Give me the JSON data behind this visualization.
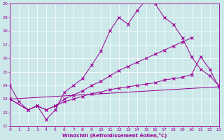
{
  "background_color": "#cce8e8",
  "grid_color": "#ffffff",
  "line_color": "#990099",
  "xlabel": "Windchill (Refroidissement éolien,°C)",
  "xlim": [
    0,
    23
  ],
  "ylim": [
    11,
    20
  ],
  "yticks": [
    11,
    12,
    13,
    14,
    15,
    16,
    17,
    18,
    19,
    20
  ],
  "xticks": [
    0,
    1,
    2,
    3,
    4,
    5,
    6,
    7,
    8,
    9,
    10,
    11,
    12,
    13,
    14,
    15,
    16,
    17,
    18,
    19,
    20,
    21,
    22,
    23
  ],
  "line1_x": [
    0,
    1,
    2,
    3,
    4,
    5,
    6,
    7,
    8,
    9,
    10,
    11,
    12,
    13,
    14,
    15,
    16,
    17,
    18,
    19,
    20,
    21,
    22,
    23
  ],
  "line1_y": [
    14.0,
    12.8,
    12.2,
    12.5,
    11.5,
    12.2,
    13.5,
    14.0,
    14.5,
    15.5,
    16.5,
    18.0,
    19.0,
    18.5,
    19.5,
    20.3,
    20.0,
    19.0,
    18.5,
    17.5,
    16.1,
    15.2,
    14.7,
    14.0
  ],
  "line2_x": [
    0,
    2,
    3,
    4,
    5,
    6,
    7,
    8,
    9,
    10,
    11,
    12,
    13,
    14,
    15,
    16,
    17,
    18,
    19,
    20
  ],
  "line2_y": [
    13.0,
    12.2,
    12.5,
    12.2,
    12.5,
    13.0,
    13.3,
    13.6,
    14.0,
    14.3,
    14.7,
    15.1,
    15.4,
    15.7,
    16.0,
    16.3,
    16.6,
    16.9,
    17.2,
    17.5
  ],
  "line3_x": [
    0,
    2,
    3,
    4,
    5,
    6,
    7,
    8,
    9,
    10,
    11,
    12,
    13,
    14,
    15,
    16,
    17,
    18,
    19,
    20,
    21,
    22,
    23
  ],
  "line3_y": [
    13.0,
    12.2,
    12.5,
    12.2,
    12.5,
    12.8,
    13.0,
    13.2,
    13.4,
    13.5,
    13.7,
    13.8,
    13.9,
    14.0,
    14.1,
    14.2,
    14.4,
    14.5,
    14.6,
    14.8,
    16.1,
    15.2,
    13.9
  ],
  "line4_x": [
    0,
    23
  ],
  "line4_y": [
    13.0,
    13.9
  ]
}
